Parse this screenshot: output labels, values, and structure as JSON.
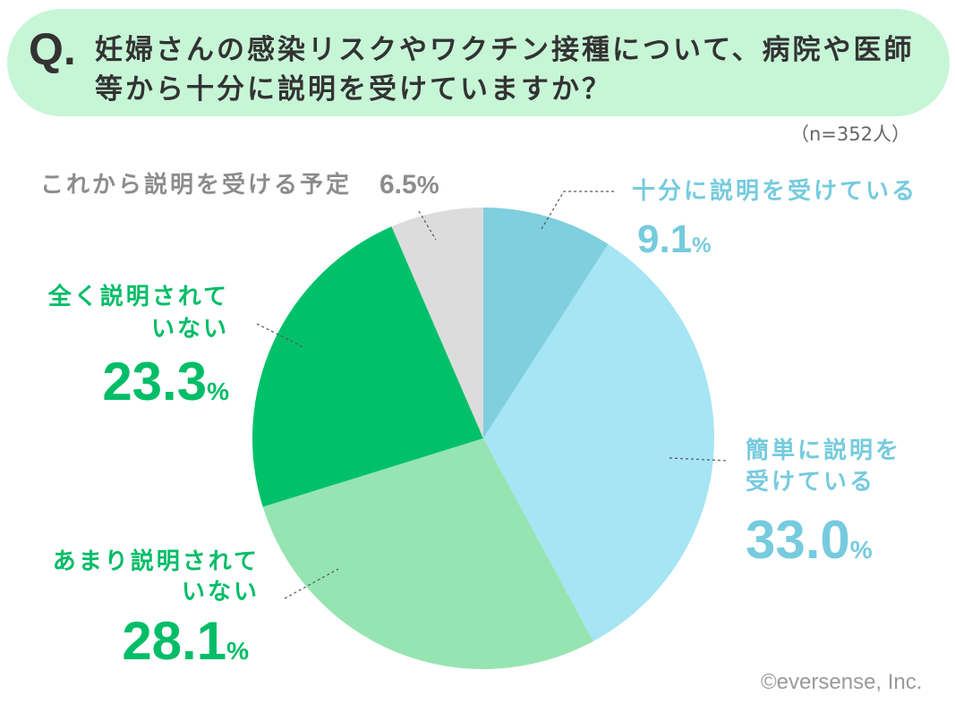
{
  "theme": {
    "banner_color": "#c7f6d7",
    "text_color": "#333333",
    "leader_color": "#555555"
  },
  "chart_data": {
    "type": "pie",
    "title_prefix": "Q.",
    "title_lines": [
      "妊婦さんの感染リスクやワクチン接種について、病院や医師",
      "等から十分に説明を受けていますか？"
    ],
    "note": "（n=352人）",
    "unit": "%",
    "slices": [
      {
        "label_lines": [
          "十分に説明を受けている"
        ],
        "value": 9.1,
        "color": "#7fcfdf",
        "label_color": "#76cbde"
      },
      {
        "label_lines": [
          "簡単に説明を",
          "受けている"
        ],
        "value": 33.0,
        "color": "#a6e5f4",
        "label_color": "#76cbde"
      },
      {
        "label_lines": [
          "あまり説明されて",
          "いない"
        ],
        "value": 28.1,
        "color": "#96e4b2",
        "label_color": "#00bd67"
      },
      {
        "label_lines": [
          "全く説明されて",
          "いない"
        ],
        "value": 23.3,
        "color": "#00c16a",
        "label_color": "#00bd67"
      },
      {
        "label_lines": [
          "これから説明を受ける予定"
        ],
        "value": 6.5,
        "color": "#dcdcdc",
        "label_color": "#8c8c8c"
      }
    ]
  },
  "footer": {
    "copyright": "©eversense, Inc."
  }
}
